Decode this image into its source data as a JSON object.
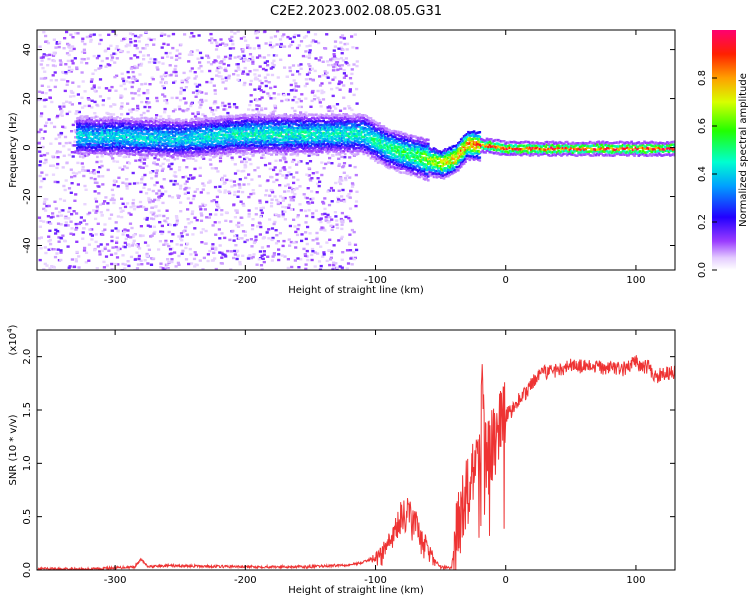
{
  "title": "C2E2.2023.002.08.05.G31",
  "colors": {
    "snr_line": "#ee3333",
    "background": "#ffffff"
  },
  "chart_data": [
    {
      "type": "heatmap",
      "xlabel": "Height of straight line (km)",
      "ylabel": "Frequency (Hz)",
      "xlim": [
        -360,
        130
      ],
      "ylim": [
        -50,
        48
      ],
      "x_ticks": [
        -300,
        -200,
        -100,
        0,
        100
      ],
      "y_ticks": [
        -40,
        -20,
        0,
        20,
        40
      ],
      "grid": false,
      "colormap": "rainbow (violet to red)",
      "colorbar": {
        "label": "Normalized spectral amplitude",
        "range": [
          0,
          1
        ],
        "ticks": [
          "0.0",
          "0.2",
          "0.4",
          "0.6",
          "0.8"
        ]
      },
      "features": {
        "noise_region_x": [
          -360,
          -115
        ],
        "main_band": [
          {
            "x": -330,
            "freq": 5,
            "amp": 0.45
          },
          {
            "x": -300,
            "freq": 5,
            "amp": 0.45
          },
          {
            "x": -250,
            "freq": 4,
            "amp": 0.45
          },
          {
            "x": -200,
            "freq": 6,
            "amp": 0.5
          },
          {
            "x": -150,
            "freq": 6,
            "amp": 0.5
          },
          {
            "x": -110,
            "freq": 6,
            "amp": 0.5
          },
          {
            "x": -90,
            "freq": 0,
            "amp": 0.55
          },
          {
            "x": -70,
            "freq": -3,
            "amp": 0.6
          },
          {
            "x": -50,
            "freq": -6,
            "amp": 0.8
          },
          {
            "x": -40,
            "freq": -4,
            "amp": 0.85
          },
          {
            "x": -30,
            "freq": 2,
            "amp": 0.9
          },
          {
            "x": -10,
            "freq": 1,
            "amp": 0.95
          },
          {
            "x": 0,
            "freq": 0,
            "amp": 0.95
          },
          {
            "x": 130,
            "freq": 0,
            "amp": 0.95
          }
        ]
      }
    },
    {
      "type": "line",
      "xlabel": "Height of straight line (km)",
      "ylabel": "SNR (10 * v/v)",
      "y_multiplier": "(x10",
      "y_multiplier_exp": "4",
      "y_multiplier_close": ")",
      "xlim": [
        -360,
        130
      ],
      "ylim": [
        0,
        2.25
      ],
      "x_ticks": [
        -300,
        -200,
        -100,
        0,
        100
      ],
      "y_ticks": [
        0.0,
        0.5,
        1.0,
        1.5,
        2.0
      ],
      "y_tick_labels": [
        "0.0",
        "0.5",
        "1.0",
        "1.5",
        "2.0"
      ],
      "grid": false,
      "series": [
        {
          "x": [
            -360,
            -320,
            -300,
            -285,
            -280,
            -275,
            -260,
            -200,
            -150,
            -120,
            -110,
            -100,
            -95,
            -90,
            -85,
            -80,
            -75,
            -70,
            -65,
            -60,
            -55,
            -50,
            -45,
            -42,
            -38,
            -35,
            -30,
            -25,
            -20,
            -18,
            -15,
            -10,
            -5,
            0,
            5,
            10,
            15,
            20,
            30,
            40,
            50,
            60,
            70,
            80,
            90,
            100,
            105,
            110,
            115,
            120,
            125,
            130
          ],
          "y": [
            0.01,
            0.01,
            0.02,
            0.03,
            0.1,
            0.03,
            0.04,
            0.03,
            0.03,
            0.05,
            0.07,
            0.12,
            0.18,
            0.25,
            0.35,
            0.5,
            0.52,
            0.45,
            0.3,
            0.22,
            0.1,
            0.03,
            0.02,
            0.02,
            0.3,
            0.45,
            0.7,
            0.9,
            1.1,
            1.6,
            1.0,
            1.2,
            1.3,
            1.45,
            1.5,
            1.6,
            1.65,
            1.75,
            1.85,
            1.88,
            1.92,
            1.9,
            1.9,
            1.9,
            1.88,
            1.95,
            1.9,
            1.9,
            1.8,
            1.85,
            1.85,
            1.85
          ]
        }
      ]
    }
  ]
}
